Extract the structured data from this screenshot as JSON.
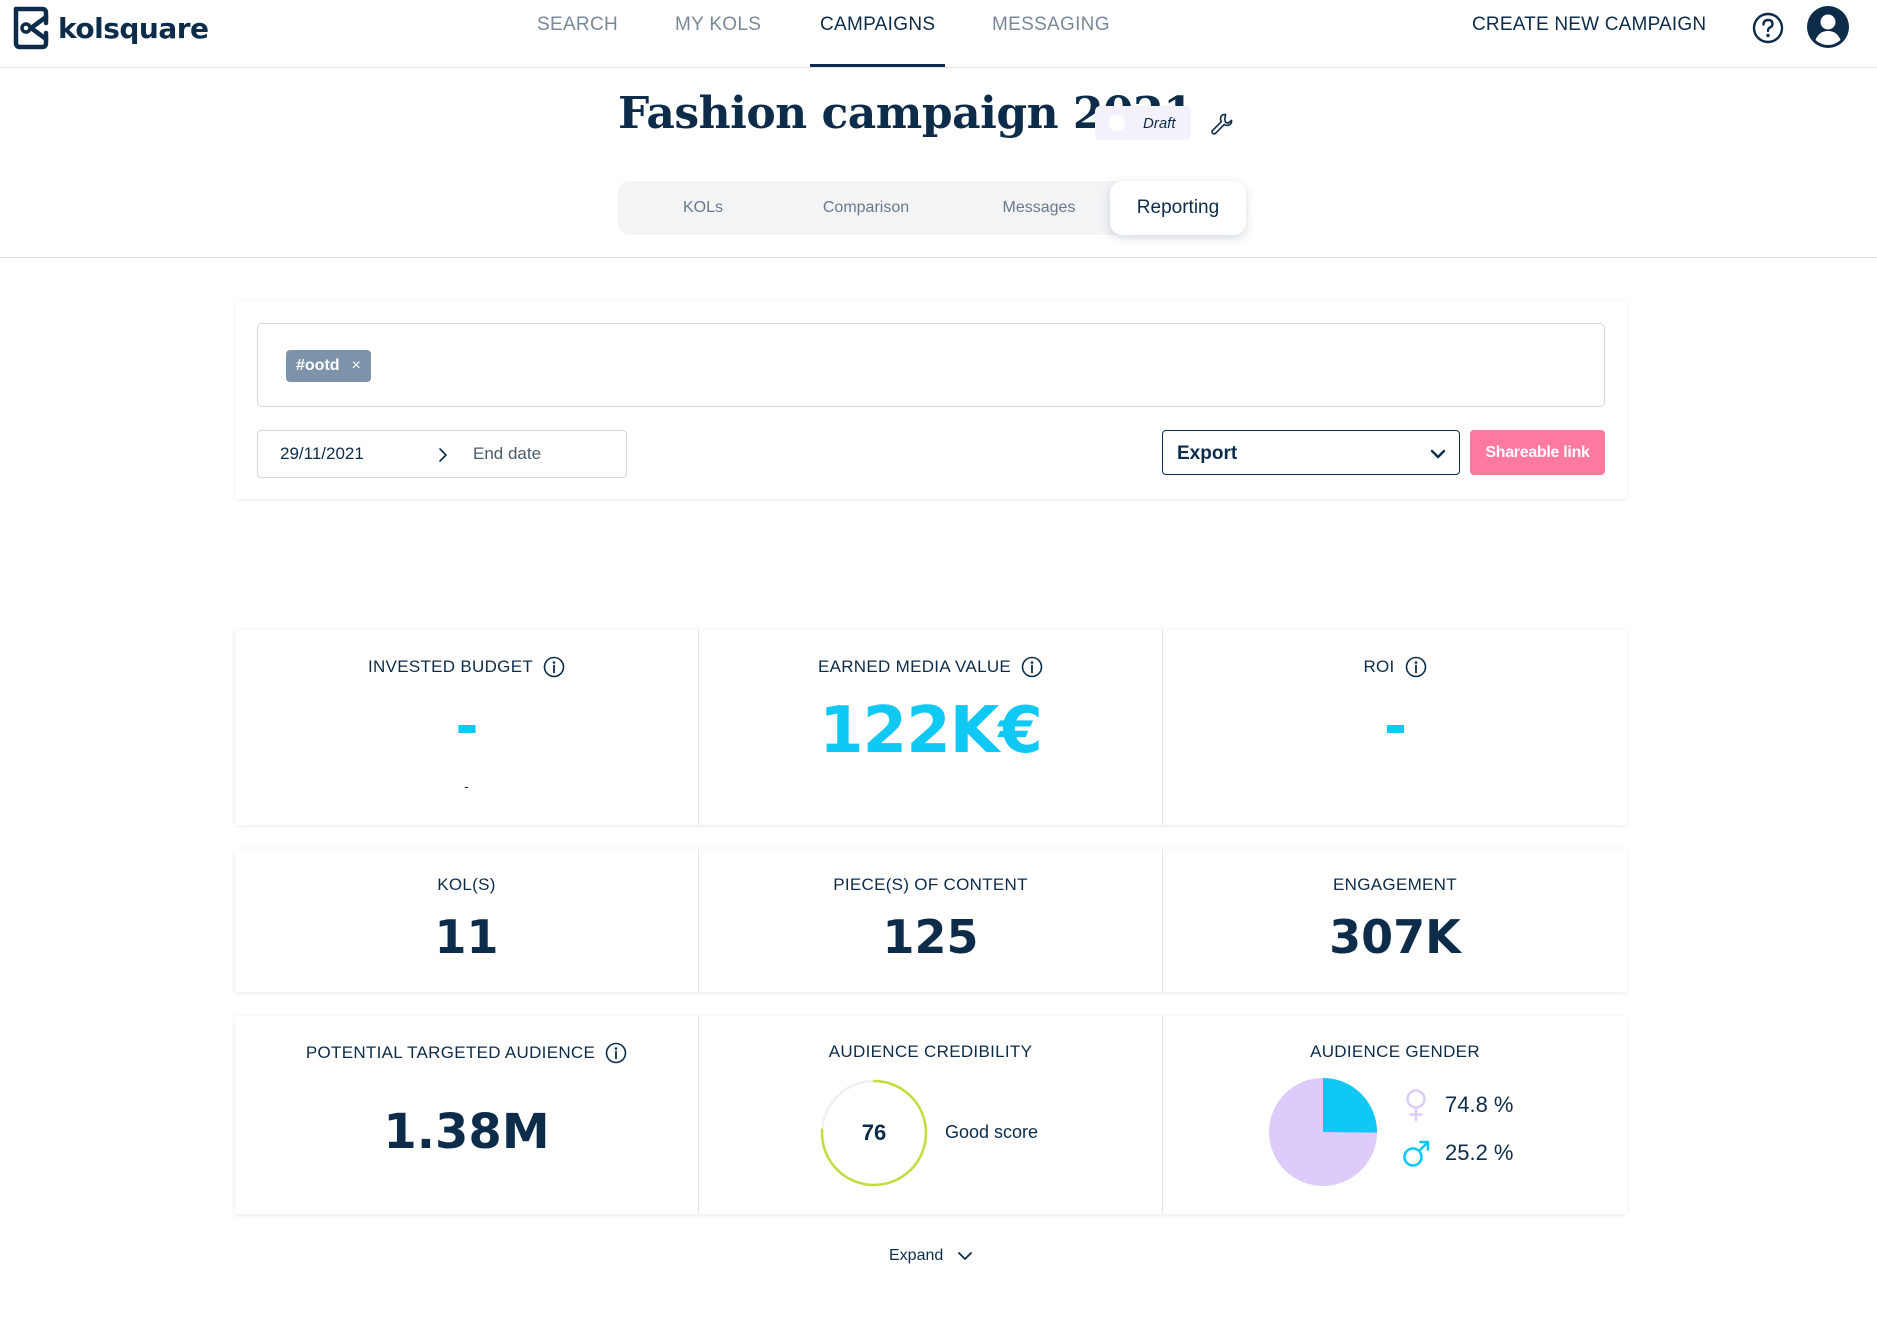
{
  "brand": {
    "name": "kolsquare"
  },
  "nav": {
    "items": [
      {
        "label": "SEARCH"
      },
      {
        "label": "MY KOLS"
      },
      {
        "label": "CAMPAIGNS"
      },
      {
        "label": "MESSAGING"
      }
    ],
    "active": "CAMPAIGNS",
    "create_label": "CREATE NEW CAMPAIGN"
  },
  "campaign": {
    "title": "Fashion campaign 2021",
    "status": "Draft"
  },
  "tabs": {
    "items": [
      {
        "label": "KOLs"
      },
      {
        "label": "Comparison"
      },
      {
        "label": "Messages"
      },
      {
        "label": "Reporting"
      }
    ],
    "active": "Reporting"
  },
  "filters": {
    "tags": [
      {
        "label": "#ootd",
        "remove": "×"
      }
    ],
    "start_date": "29/11/2021",
    "end_date_placeholder": "End date",
    "export_label": "Export",
    "share_label": "Shareable link"
  },
  "stats": {
    "invested_budget": {
      "label": "INVESTED BUDGET",
      "value": "-",
      "sub": "-"
    },
    "earned_media_value": {
      "label": "EARNED MEDIA VALUE",
      "value": "122K€"
    },
    "roi": {
      "label": "ROI",
      "value": "-"
    },
    "kols": {
      "label": "KOL(S)",
      "value": "11"
    },
    "pieces_of_content": {
      "label": "PIECE(S) OF CONTENT",
      "value": "125"
    },
    "engagement": {
      "label": "ENGAGEMENT",
      "value": "307K"
    },
    "potential_audience": {
      "label": "POTENTIAL TARGETED AUDIENCE",
      "value": "1.38M"
    },
    "audience_credibility": {
      "label": "AUDIENCE CREDIBILITY",
      "score": "76",
      "score_value": 76,
      "score_text": "Good score"
    },
    "audience_gender": {
      "label": "AUDIENCE GENDER",
      "female": "74.8 %",
      "male": "25.2 %",
      "female_value": 74.8,
      "male_value": 25.2
    }
  },
  "colors": {
    "accent_cyan": "#10c8f4",
    "navy": "#0c2c4a",
    "pink": "#ff7aa0",
    "female_purple": "#dccbfb",
    "credibility_green": "#c5dc3e"
  },
  "expand_label": "Expand"
}
